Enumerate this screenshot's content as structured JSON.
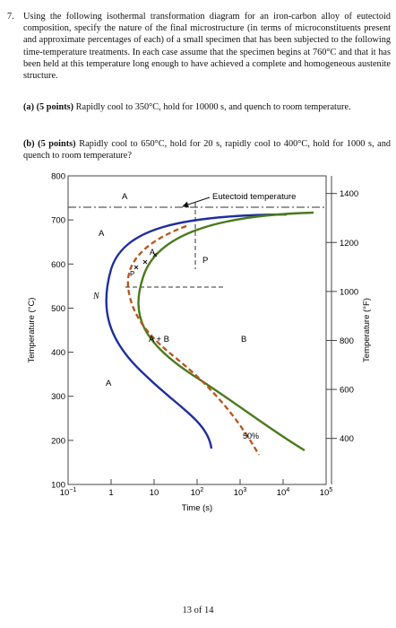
{
  "question": {
    "number": "7.",
    "text": "Using the following isothermal transformation diagram for an iron-carbon alloy of eutectoid composition, specify the nature of the final microstructure (in terms of microconstituents present and approximate percentages of each) of a small specimen that has been subjected to the following time-temperature treatments. In each case assume that the specimen begins at 760°C and that it has been held at this temperature long enough to have achieved a complete and homogeneous austenite structure."
  },
  "parts": [
    {
      "label": "(a) (5 points)",
      "text": "Rapidly cool to 350°C, hold for 10000 s, and quench to room temperature."
    },
    {
      "label": "(b) (5 points)",
      "text": "Rapidly cool to 650°C, hold for 20 s, rapidly cool to 400°C, hold for 1000 s, and quench to room temperature?"
    }
  ],
  "diagram": {
    "ylabel_left": "Temperature (°C)",
    "ylabel_right": "Temperature (°F)",
    "xlabel": "Time (s)",
    "left_ticks": [
      "800",
      "700",
      "600",
      "500",
      "400",
      "300",
      "200",
      "100"
    ],
    "right_ticks": [
      "1400",
      "1200",
      "1000",
      "800",
      "600",
      "400"
    ],
    "x_ticks": [
      "10",
      "1",
      "10",
      "10",
      "10",
      "10",
      "10"
    ],
    "x_exponents": [
      "−1",
      "",
      "",
      "2",
      "3",
      "4",
      "5"
    ],
    "eutectoid_label": "Eutectoid temperature",
    "region_labels": {
      "a_top": "A",
      "a_left": "A",
      "n": "N",
      "p_small": "P",
      "a_on_curve": "A",
      "p": "P",
      "a_plus_b": "A + B",
      "b": "B",
      "a_lower": "A",
      "fifty": "50%"
    }
  },
  "chart_data": {
    "type": "line",
    "title": "",
    "xlabel": "Time (s)",
    "ylabel": "Temperature (°C)",
    "x_scale": "log",
    "xlim": [
      0.1,
      100000
    ],
    "ylim": [
      100,
      800
    ],
    "eutectoid_temperature": 727,
    "series": [
      {
        "name": "",
        "x": [
          3000,
          10,
          2,
          0.8,
          0.6,
          0.9,
          2,
          8,
          25,
          70,
          150
        ],
        "y": [
          727,
          690,
          630,
          560,
          500,
          440,
          390,
          330,
          290,
          255,
          230
        ]
      },
      {
        "name": "",
        "x": [
          6000,
          50,
          15,
          6,
          5,
          7,
          18,
          60,
          200,
          800,
          3000,
          12000
        ],
        "y": [
          727,
          700,
          640,
          560,
          500,
          440,
          400,
          350,
          310,
          270,
          240,
          220
        ]
      },
      {
        "name": "50%",
        "x": [
          150,
          20,
          6,
          2.5,
          2,
          3,
          8,
          25,
          80,
          200,
          500
        ],
        "y": [
          727,
          690,
          640,
          590,
          550,
          510,
          460,
          400,
          330,
          270,
          210
        ]
      }
    ]
  },
  "page_footer": "13 of 14"
}
